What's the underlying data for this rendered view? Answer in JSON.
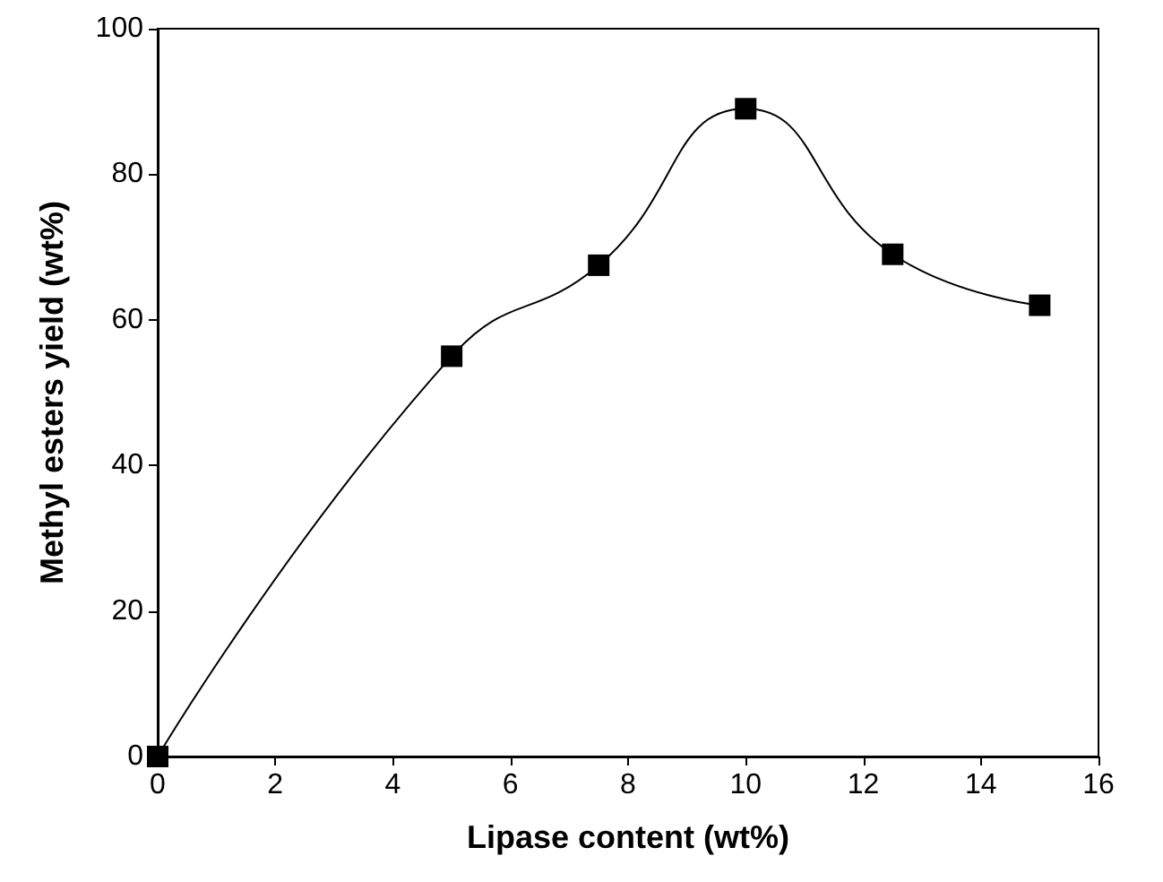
{
  "chart_data": {
    "type": "line",
    "xlabel": "Lipase content (wt%)",
    "ylabel": "Methyl esters yield (wt%)",
    "x": [
      0,
      5,
      7.5,
      10,
      12.5,
      15
    ],
    "series": [
      {
        "color": "#000000",
        "values": [
          0,
          55,
          67.5,
          89,
          69,
          62
        ]
      }
    ],
    "xlim": [
      0,
      16
    ],
    "xticks": [
      0,
      2,
      4,
      6,
      8,
      10,
      12,
      14,
      16
    ],
    "ylim": [
      0,
      100
    ],
    "yticks": [
      0,
      20,
      40,
      60,
      80,
      100
    ],
    "marker": "square",
    "line_style": "solid"
  }
}
